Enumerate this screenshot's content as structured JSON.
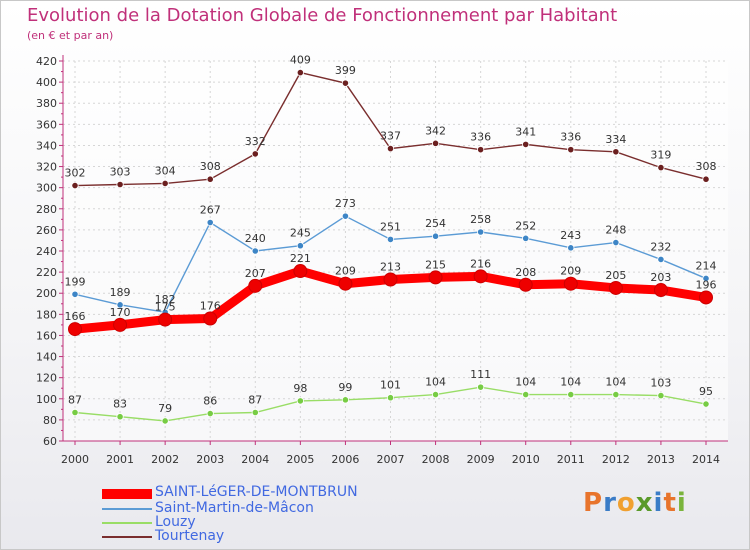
{
  "title": "Evolution de la Dotation Globale de Fonctionnement par Habitant",
  "subtitle": "(en € et par an)",
  "logo": "Proxiti",
  "colors": {
    "axis": "#c0307a",
    "label": "#333333",
    "legend_text": "#4169e1"
  },
  "chart_data": {
    "type": "line",
    "title": "Evolution de la Dotation Globale de Fonctionnement par Habitant",
    "ylabel": "(en € et par an)",
    "xlabel": "",
    "ylim": [
      60,
      420
    ],
    "yticks": [
      60,
      80,
      100,
      120,
      140,
      160,
      180,
      200,
      220,
      240,
      260,
      280,
      300,
      320,
      340,
      360,
      380,
      400,
      420
    ],
    "categories": [
      "2000",
      "2001",
      "2002",
      "2003",
      "2004",
      "2005",
      "2006",
      "2007",
      "2008",
      "2009",
      "2010",
      "2011",
      "2012",
      "2013",
      "2014"
    ],
    "grid": true,
    "series": [
      {
        "name": "Tourtenay",
        "color": "#7a2e2e",
        "dot": "#6b1f1f",
        "values": [
          302,
          303,
          304,
          308,
          332,
          409,
          399,
          337,
          342,
          336,
          341,
          336,
          334,
          319,
          308
        ]
      },
      {
        "name": "Saint-Martin-de-Mâcon",
        "color": "#5b9bd5",
        "dot": "#3d85c6",
        "values": [
          199,
          189,
          182,
          267,
          240,
          245,
          273,
          251,
          254,
          258,
          252,
          243,
          248,
          232,
          214
        ]
      },
      {
        "name": "Louzy",
        "color": "#99dd66",
        "dot": "#77cc44",
        "values": [
          87,
          83,
          79,
          86,
          87,
          98,
          99,
          101,
          104,
          111,
          104,
          104,
          104,
          103,
          95
        ]
      },
      {
        "name": "SAINT-LéGER-DE-MONTBRUN",
        "color": "#ff0000",
        "dot": "#ee0000",
        "values": [
          166,
          170,
          175,
          176,
          207,
          221,
          209,
          213,
          215,
          216,
          208,
          209,
          205,
          203,
          196
        ],
        "highlight": true
      }
    ],
    "legend": [
      "SAINT-LéGER-DE-MONTBRUN",
      "Saint-Martin-de-Mâcon",
      "Louzy",
      "Tourtenay"
    ]
  }
}
